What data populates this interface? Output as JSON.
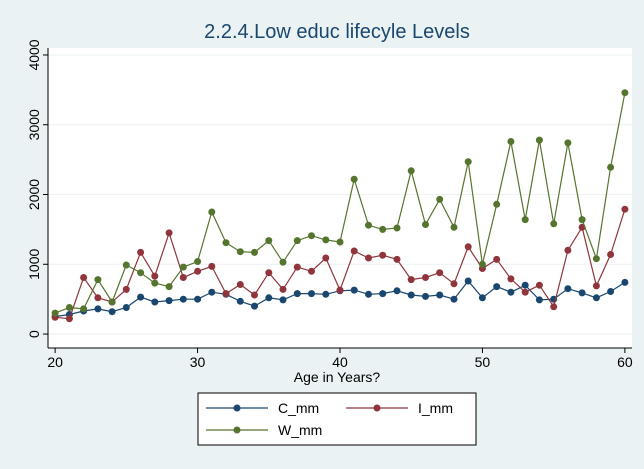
{
  "chart_data": {
    "type": "line",
    "title": "2.2.4.Low educ lifecyle Levels",
    "xlabel": "Age in Years?",
    "ylabel": "",
    "x": [
      20,
      21,
      22,
      23,
      24,
      25,
      26,
      27,
      28,
      29,
      30,
      31,
      32,
      33,
      34,
      35,
      36,
      37,
      38,
      39,
      40,
      41,
      42,
      43,
      44,
      45,
      46,
      47,
      48,
      49,
      50,
      51,
      52,
      53,
      54,
      55,
      56,
      57,
      58,
      59,
      60
    ],
    "xlim": [
      19.5,
      60.5
    ],
    "ylim": [
      -200,
      4100
    ],
    "xticks": [
      20,
      30,
      40,
      50,
      60
    ],
    "yticks": [
      0,
      1000,
      2000,
      3000,
      4000
    ],
    "grid": "horizontal",
    "legend_position": "bottom",
    "series": [
      {
        "name": "C_mm",
        "color": "#1a476f",
        "values": [
          250,
          280,
          330,
          360,
          320,
          380,
          530,
          460,
          480,
          500,
          500,
          600,
          570,
          470,
          400,
          520,
          490,
          580,
          580,
          570,
          620,
          630,
          570,
          580,
          620,
          560,
          540,
          560,
          500,
          760,
          520,
          680,
          600,
          700,
          490,
          500,
          650,
          590,
          520,
          610,
          740
        ]
      },
      {
        "name": "I_mm",
        "color": "#90353b",
        "values": [
          240,
          220,
          810,
          520,
          460,
          640,
          1170,
          830,
          1450,
          810,
          900,
          970,
          580,
          710,
          560,
          880,
          640,
          960,
          900,
          1090,
          630,
          1190,
          1090,
          1130,
          1070,
          780,
          810,
          880,
          720,
          1250,
          940,
          1070,
          790,
          600,
          700,
          390,
          1200,
          1530,
          690,
          1140,
          1790
        ]
      },
      {
        "name": "W_mm",
        "color": "#55752f",
        "values": [
          300,
          380,
          360,
          780,
          460,
          990,
          880,
          730,
          680,
          960,
          1040,
          1750,
          1310,
          1180,
          1170,
          1340,
          1030,
          1340,
          1410,
          1350,
          1320,
          2220,
          1560,
          1500,
          1520,
          2340,
          1570,
          1930,
          1530,
          2470,
          1000,
          1860,
          2760,
          1640,
          2780,
          1580,
          2740,
          1640,
          1080,
          2390,
          3460
        ]
      }
    ]
  }
}
